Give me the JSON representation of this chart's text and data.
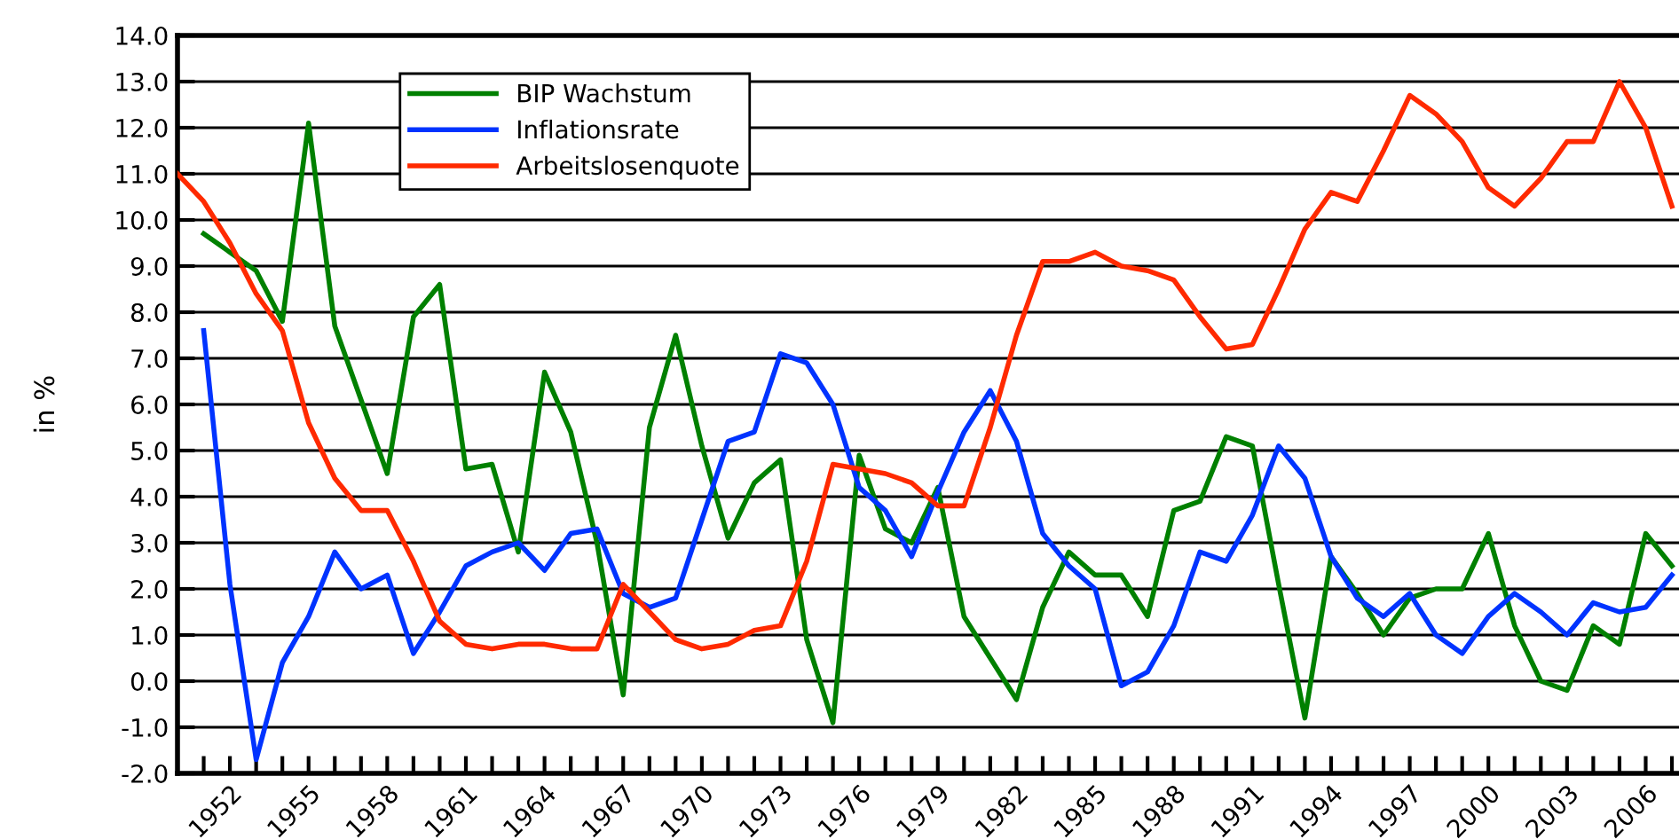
{
  "chart_data": {
    "type": "line",
    "ylabel": "in %",
    "legend": "top left",
    "grid": "y",
    "marker": "none",
    "line_style": "solid",
    "xlim": [
      1950,
      2007.27
    ],
    "ylim": [
      -2,
      14
    ],
    "yticks": [
      {
        "value": -2,
        "label": "-2.0"
      },
      {
        "value": -1,
        "label": "-1.0"
      },
      {
        "value": 0,
        "label": "0.0"
      },
      {
        "value": 1,
        "label": "1.0"
      },
      {
        "value": 2,
        "label": "2.0"
      },
      {
        "value": 3,
        "label": "3.0"
      },
      {
        "value": 4,
        "label": "4.0"
      },
      {
        "value": 5,
        "label": "5.0"
      },
      {
        "value": 6,
        "label": "6.0"
      },
      {
        "value": 7,
        "label": "7.0"
      },
      {
        "value": 8,
        "label": "8.0"
      },
      {
        "value": 9,
        "label": "9.0"
      },
      {
        "value": 10,
        "label": "10.0"
      },
      {
        "value": 11,
        "label": "11.0"
      },
      {
        "value": 12,
        "label": "12.0"
      },
      {
        "value": 13,
        "label": "13.0"
      },
      {
        "value": 14,
        "label": "14.0"
      }
    ],
    "xticks": [
      {
        "value": 1951,
        "label": null
      },
      1952,
      {
        "value": 1953,
        "label": null
      },
      {
        "value": 1954,
        "label": null
      },
      1955,
      {
        "value": 1956,
        "label": null
      },
      {
        "value": 1957,
        "label": null
      },
      1958,
      {
        "value": 1959,
        "label": null
      },
      {
        "value": 1960,
        "label": null
      },
      1961,
      {
        "value": 1962,
        "label": null
      },
      {
        "value": 1963,
        "label": null
      },
      1964,
      {
        "value": 1965,
        "label": null
      },
      {
        "value": 1966,
        "label": null
      },
      1967,
      {
        "value": 1968,
        "label": null
      },
      {
        "value": 1969,
        "label": null
      },
      1970,
      {
        "value": 1971,
        "label": null
      },
      {
        "value": 1972,
        "label": null
      },
      1973,
      {
        "value": 1974,
        "label": null
      },
      {
        "value": 1975,
        "label": null
      },
      1976,
      {
        "value": 1977,
        "label": null
      },
      {
        "value": 1978,
        "label": null
      },
      1979,
      {
        "value": 1980,
        "label": null
      },
      {
        "value": 1981,
        "label": null
      },
      1982,
      {
        "value": 1983,
        "label": null
      },
      {
        "value": 1984,
        "label": null
      },
      1985,
      {
        "value": 1986,
        "label": null
      },
      {
        "value": 1987,
        "label": null
      },
      1988,
      {
        "value": 1989,
        "label": null
      },
      {
        "value": 1990,
        "label": null
      },
      1991,
      {
        "value": 1992,
        "label": null
      },
      {
        "value": 1993,
        "label": null
      },
      1994,
      {
        "value": 1995,
        "label": null
      },
      {
        "value": 1996,
        "label": null
      },
      1997,
      {
        "value": 1998,
        "label": null
      },
      {
        "value": 1999,
        "label": null
      },
      2000,
      {
        "value": 2001,
        "label": null
      },
      {
        "value": 2002,
        "label": null
      },
      2003,
      {
        "value": 2004,
        "label": null
      },
      {
        "value": 2005,
        "label": null
      },
      2006,
      {
        "value": 2007,
        "label": null
      }
    ],
    "series": [
      {
        "name": "BIP Wachstum",
        "color": "#008000",
        "x": [
          1951,
          1952,
          1953,
          1954,
          1955,
          1956,
          1957,
          1958,
          1959,
          1960,
          1961,
          1962,
          1963,
          1964,
          1965,
          1966,
          1967,
          1968,
          1969,
          1970,
          1971,
          1972,
          1973,
          1974,
          1975,
          1976,
          1977,
          1978,
          1979,
          1980,
          1981,
          1982,
          1983,
          1984,
          1985,
          1986,
          1987,
          1988,
          1989,
          1990,
          1991,
          1992,
          1993,
          1994,
          1995,
          1996,
          1997,
          1998,
          1999,
          2000,
          2001,
          2002,
          2003,
          2004,
          2005,
          2006,
          2007
        ],
        "values": [
          9.7,
          9.3,
          8.9,
          7.8,
          12.1,
          7.7,
          6.1,
          4.5,
          7.9,
          8.6,
          4.6,
          4.7,
          2.8,
          6.7,
          5.4,
          3.0,
          -0.3,
          5.5,
          7.5,
          5.1,
          3.1,
          4.3,
          4.8,
          0.9,
          -0.9,
          4.9,
          3.3,
          3.0,
          4.2,
          1.4,
          0.5,
          -0.4,
          1.6,
          2.8,
          2.3,
          2.3,
          1.4,
          3.7,
          3.9,
          5.3,
          5.1,
          2.1,
          -0.8,
          2.7,
          1.9,
          1.0,
          1.8,
          2.0,
          2.0,
          3.2,
          1.2,
          0.0,
          -0.2,
          1.2,
          0.8,
          3.2,
          2.5
        ]
      },
      {
        "name": "Inflationsrate",
        "color": "#0033ff",
        "x": [
          1951,
          1952,
          1953,
          1954,
          1955,
          1956,
          1957,
          1958,
          1959,
          1960,
          1961,
          1962,
          1963,
          1964,
          1965,
          1966,
          1967,
          1968,
          1969,
          1970,
          1971,
          1972,
          1973,
          1974,
          1975,
          1976,
          1977,
          1978,
          1979,
          1980,
          1981,
          1982,
          1983,
          1984,
          1985,
          1986,
          1987,
          1988,
          1989,
          1990,
          1991,
          1992,
          1993,
          1994,
          1995,
          1996,
          1997,
          1998,
          1999,
          2000,
          2001,
          2002,
          2003,
          2004,
          2005,
          2006,
          2007
        ],
        "values": [
          7.6,
          2.1,
          -1.7,
          0.4,
          1.4,
          2.8,
          2.0,
          2.3,
          0.6,
          1.5,
          2.5,
          2.8,
          3.0,
          2.4,
          3.2,
          3.3,
          1.9,
          1.6,
          1.8,
          3.5,
          5.2,
          5.4,
          7.1,
          6.9,
          6.0,
          4.2,
          3.7,
          2.7,
          4.1,
          5.4,
          6.3,
          5.2,
          3.2,
          2.5,
          2.0,
          -0.1,
          0.2,
          1.2,
          2.8,
          2.6,
          3.6,
          5.1,
          4.4,
          2.7,
          1.8,
          1.4,
          1.9,
          1.0,
          0.6,
          1.4,
          1.9,
          1.5,
          1.0,
          1.7,
          1.5,
          1.6,
          2.3
        ]
      },
      {
        "name": "Arbeitslosenquote",
        "color": "#ff2a00",
        "x": [
          1950,
          1951,
          1952,
          1953,
          1954,
          1955,
          1956,
          1957,
          1958,
          1959,
          1960,
          1961,
          1962,
          1963,
          1964,
          1965,
          1966,
          1967,
          1968,
          1969,
          1970,
          1971,
          1972,
          1973,
          1974,
          1975,
          1976,
          1977,
          1978,
          1979,
          1980,
          1981,
          1982,
          1983,
          1984,
          1985,
          1986,
          1987,
          1988,
          1989,
          1990,
          1991,
          1992,
          1993,
          1994,
          1995,
          1996,
          1997,
          1998,
          1999,
          2000,
          2001,
          2002,
          2003,
          2004,
          2005,
          2006,
          2007
        ],
        "values": [
          11.0,
          10.4,
          9.5,
          8.4,
          7.6,
          5.6,
          4.4,
          3.7,
          3.7,
          2.6,
          1.3,
          0.8,
          0.7,
          0.8,
          0.8,
          0.7,
          0.7,
          2.1,
          1.5,
          0.9,
          0.7,
          0.8,
          1.1,
          1.2,
          2.6,
          4.7,
          4.6,
          4.5,
          4.3,
          3.8,
          3.8,
          5.5,
          7.5,
          9.1,
          9.1,
          9.3,
          9.0,
          8.9,
          8.7,
          7.9,
          7.2,
          7.3,
          8.5,
          9.8,
          10.6,
          10.4,
          11.5,
          12.7,
          12.3,
          11.7,
          10.7,
          10.3,
          10.9,
          11.7,
          11.7,
          13.0,
          12.0,
          10.3
        ]
      }
    ]
  }
}
